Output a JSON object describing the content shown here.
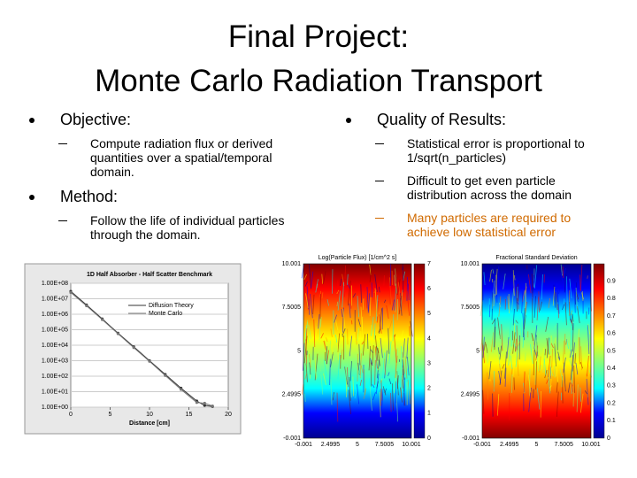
{
  "title": [
    "Final Project:",
    "Monte Carlo Radiation Transport"
  ],
  "left_column": [
    {
      "text": "Objective:",
      "subitems": [
        "Compute radiation flux or derived quantities over a spatial/temporal domain."
      ]
    },
    {
      "text": "Method:",
      "subitems": [
        "Follow the life of individual particles through the domain."
      ]
    }
  ],
  "right_column": [
    {
      "text": "Quality of Results:",
      "subitems": [
        "Statistical error is proportional to 1/sqrt(n_particles)",
        "Difficult to get even particle distribution across the domain",
        "Many particles are required to achieve low statistical error"
      ]
    }
  ],
  "charts": {
    "benchmark": {
      "type": "line",
      "title": "1D Half Absorber - Half Scatter Benchmark",
      "xlabel": "Distance [cm]",
      "log_y": true,
      "xlim": [
        0,
        20
      ],
      "xticks": [
        0,
        5,
        10,
        15,
        20
      ],
      "ylim": [
        1,
        100000000
      ],
      "yticks": [
        {
          "value": 1,
          "label": "1.00E+00"
        },
        {
          "value": 10,
          "label": "1.00E+01"
        },
        {
          "value": 100,
          "label": "1.00E+02"
        },
        {
          "value": 1000,
          "label": "1.00E+03"
        },
        {
          "value": 10000,
          "label": "1.00E+04"
        },
        {
          "value": 100000,
          "label": "1.00E+05"
        },
        {
          "value": 1000000,
          "label": "1.00E+06"
        },
        {
          "value": 10000000,
          "label": "1.00E+07"
        },
        {
          "value": 100000000,
          "label": "1.00E+08"
        }
      ],
      "x": [
        0,
        2,
        4,
        6,
        8,
        10,
        12,
        14,
        16,
        17,
        18
      ],
      "series": [
        {
          "name": "Diffusion Theory",
          "color": "#333333",
          "values": [
            30000000,
            4000000,
            500000,
            60000,
            8000,
            1000,
            130,
            17,
            2.5,
            1.3,
            1.1
          ]
        },
        {
          "name": "Monte Carlo",
          "color": "#777777",
          "values": [
            25000000,
            3500000,
            450000,
            55000,
            7000,
            900,
            110,
            14,
            2,
            1.8,
            1.2
          ]
        }
      ]
    },
    "flux_map": {
      "type": "heatmap",
      "title": "Log(Particle Flux) [1/cm^2 s]",
      "clim": [
        0,
        7
      ],
      "cticks": [
        0,
        1,
        2,
        3,
        4,
        5,
        6,
        7
      ],
      "xlim": [
        -0.001,
        10.001
      ],
      "xticks": [
        -0.001,
        2.4995,
        5,
        7.5005,
        10.001
      ],
      "ylim": [
        -0.001,
        10.001
      ],
      "yticks": [
        -0.001,
        2.4995,
        5,
        7.5005,
        10.001
      ]
    },
    "error_map": {
      "type": "heatmap",
      "title": "Fractional Standard Deviation",
      "clim": [
        0,
        1
      ],
      "cticks": [
        0,
        0.1,
        0.2,
        0.3,
        0.4,
        0.5,
        0.6,
        0.7,
        0.8,
        0.9
      ],
      "xlim": [
        -0.001,
        10.001
      ],
      "xticks": [
        -0.001,
        2.4995,
        5,
        7.5005,
        10.001
      ],
      "ylim": [
        -0.001,
        10.001
      ],
      "yticks": [
        -0.001,
        2.4995,
        5,
        7.5005,
        10.001
      ]
    }
  }
}
